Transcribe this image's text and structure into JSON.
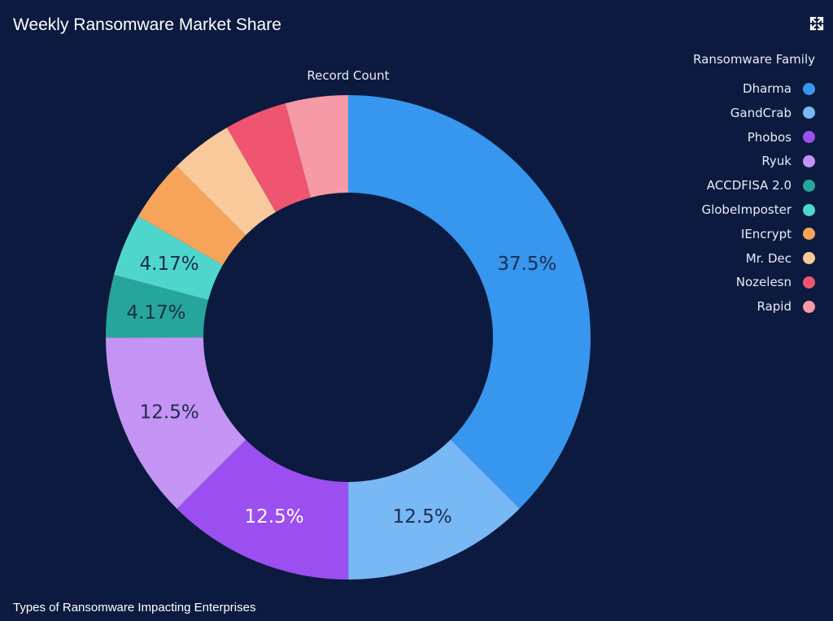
{
  "card": {
    "title": "Weekly Ransomware Market Share",
    "footer": "Types of Ransomware Impacting Enterprises",
    "expand_icon": "expand-icon"
  },
  "legend": {
    "title": "Ransomware Family"
  },
  "chart_data": {
    "type": "pie",
    "variant": "donut",
    "title": "Weekly Ransomware Market Share",
    "measure_label": "Record Count",
    "legend_title": "Ransomware Family",
    "legend_position": "right",
    "slices": [
      {
        "name": "Dharma",
        "percent": 37.5,
        "label": "37.5%",
        "color": "#3796ee",
        "label_color": "#1c2b4d"
      },
      {
        "name": "GandCrab",
        "percent": 12.5,
        "label": "12.5%",
        "color": "#78b8f4",
        "label_color": "#1c2b4d"
      },
      {
        "name": "Phobos",
        "percent": 12.5,
        "label": "12.5%",
        "color": "#9c4ff0",
        "label_color": "#ffffff"
      },
      {
        "name": "Ryuk",
        "percent": 12.5,
        "label": "12.5%",
        "color": "#c494f4",
        "label_color": "#1c2b4d"
      },
      {
        "name": "ACCDFISA 2.0",
        "percent": 4.17,
        "label": "4.17%",
        "color": "#26a69a",
        "label_color": "#1c2b4d"
      },
      {
        "name": "GlobeImposter",
        "percent": 4.17,
        "label": "4.17%",
        "color": "#4fd6cc",
        "label_color": "#1c2b4d"
      },
      {
        "name": "IEncrypt",
        "percent": 4.17,
        "label": "",
        "color": "#f6a45a",
        "label_color": "#1c2b4d"
      },
      {
        "name": "Mr. Dec",
        "percent": 4.17,
        "label": "",
        "color": "#f8c99a",
        "label_color": "#1c2b4d"
      },
      {
        "name": "Nozelesn",
        "percent": 4.17,
        "label": "",
        "color": "#ef5570",
        "label_color": "#1c2b4d"
      },
      {
        "name": "Rapid",
        "percent": 4.17,
        "label": "",
        "color": "#f59aa6",
        "label_color": "#1c2b4d"
      }
    ]
  }
}
